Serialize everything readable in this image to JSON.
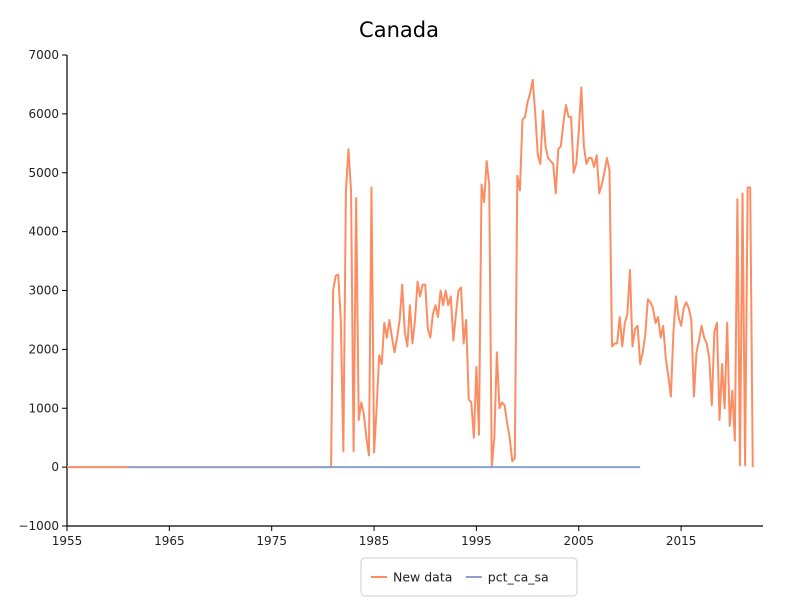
{
  "chart_data": {
    "type": "line",
    "title": "Canada",
    "xlabel": "",
    "ylabel": "",
    "xlim": [
      1955,
      2023
    ],
    "ylim": [
      -1000,
      7000
    ],
    "x_ticks": [
      1955,
      1965,
      1975,
      1985,
      1995,
      2005,
      2015
    ],
    "y_ticks": [
      -1000,
      0,
      1000,
      2000,
      3000,
      4000,
      5000,
      6000,
      7000
    ],
    "grid": false,
    "legend_position": "bottom",
    "series": [
      {
        "name": "New data",
        "color": "#fc8d62",
        "points": [
          [
            1955,
            0
          ],
          [
            1957,
            0
          ],
          [
            1959,
            0
          ],
          [
            1961,
            0
          ],
          [
            1963,
            0
          ],
          [
            1965,
            0
          ],
          [
            1967,
            0
          ],
          [
            1969,
            0
          ],
          [
            1971,
            0
          ],
          [
            1973,
            0
          ],
          [
            1975,
            0
          ],
          [
            1977,
            0
          ],
          [
            1979,
            0
          ],
          [
            1980.8,
            0
          ],
          [
            1981.0,
            3000
          ],
          [
            1981.25,
            3250
          ],
          [
            1981.5,
            3270
          ],
          [
            1981.75,
            2500
          ],
          [
            1982.0,
            270
          ],
          [
            1982.25,
            4700
          ],
          [
            1982.5,
            5400
          ],
          [
            1982.75,
            4700
          ],
          [
            1983.0,
            270
          ],
          [
            1983.25,
            4570
          ],
          [
            1983.5,
            800
          ],
          [
            1983.75,
            1100
          ],
          [
            1984.0,
            900
          ],
          [
            1984.25,
            500
          ],
          [
            1984.5,
            200
          ],
          [
            1984.75,
            4750
          ],
          [
            1985.0,
            250
          ],
          [
            1985.25,
            1000
          ],
          [
            1985.5,
            1900
          ],
          [
            1985.75,
            1750
          ],
          [
            1986.0,
            2450
          ],
          [
            1986.25,
            2200
          ],
          [
            1986.5,
            2500
          ],
          [
            1986.75,
            2200
          ],
          [
            1987.0,
            1950
          ],
          [
            1987.25,
            2200
          ],
          [
            1987.5,
            2500
          ],
          [
            1987.75,
            3100
          ],
          [
            1988.0,
            2300
          ],
          [
            1988.25,
            2050
          ],
          [
            1988.5,
            2750
          ],
          [
            1988.75,
            2100
          ],
          [
            1989.0,
            2500
          ],
          [
            1989.25,
            3150
          ],
          [
            1989.5,
            2900
          ],
          [
            1989.75,
            3100
          ],
          [
            1990.0,
            3100
          ],
          [
            1990.25,
            2350
          ],
          [
            1990.5,
            2200
          ],
          [
            1990.75,
            2600
          ],
          [
            1991.0,
            2750
          ],
          [
            1991.25,
            2550
          ],
          [
            1991.5,
            3000
          ],
          [
            1991.75,
            2750
          ],
          [
            1992.0,
            3000
          ],
          [
            1992.25,
            2750
          ],
          [
            1992.5,
            2900
          ],
          [
            1992.75,
            2150
          ],
          [
            1993.0,
            2600
          ],
          [
            1993.25,
            3000
          ],
          [
            1993.5,
            3050
          ],
          [
            1993.75,
            2100
          ],
          [
            1994.0,
            2500
          ],
          [
            1994.25,
            1150
          ],
          [
            1994.5,
            1100
          ],
          [
            1994.75,
            500
          ],
          [
            1995.0,
            1700
          ],
          [
            1995.25,
            550
          ],
          [
            1995.5,
            4800
          ],
          [
            1995.75,
            4500
          ],
          [
            1996.0,
            5200
          ],
          [
            1996.25,
            4800
          ],
          [
            1996.5,
            0
          ],
          [
            1996.75,
            500
          ],
          [
            1997.0,
            1950
          ],
          [
            1997.25,
            1000
          ],
          [
            1997.5,
            1100
          ],
          [
            1997.75,
            1050
          ],
          [
            1998.0,
            750
          ],
          [
            1998.25,
            500
          ],
          [
            1998.5,
            100
          ],
          [
            1998.75,
            150
          ],
          [
            1999.0,
            4950
          ],
          [
            1999.25,
            4700
          ],
          [
            1999.5,
            5900
          ],
          [
            1999.75,
            5950
          ],
          [
            2000.0,
            6200
          ],
          [
            2000.25,
            6350
          ],
          [
            2000.5,
            6580
          ],
          [
            2000.75,
            6000
          ],
          [
            2001.0,
            5300
          ],
          [
            2001.25,
            5150
          ],
          [
            2001.5,
            6050
          ],
          [
            2001.75,
            5450
          ],
          [
            2002.0,
            5250
          ],
          [
            2002.25,
            5200
          ],
          [
            2002.5,
            5150
          ],
          [
            2002.75,
            4650
          ],
          [
            2003.0,
            5400
          ],
          [
            2003.25,
            5450
          ],
          [
            2003.5,
            5850
          ],
          [
            2003.75,
            6150
          ],
          [
            2004.0,
            5950
          ],
          [
            2004.25,
            5950
          ],
          [
            2004.5,
            5000
          ],
          [
            2004.75,
            5150
          ],
          [
            2005.0,
            5700
          ],
          [
            2005.25,
            6450
          ],
          [
            2005.5,
            5450
          ],
          [
            2005.75,
            5150
          ],
          [
            2006.0,
            5250
          ],
          [
            2006.25,
            5250
          ],
          [
            2006.5,
            5100
          ],
          [
            2006.75,
            5300
          ],
          [
            2007.0,
            4650
          ],
          [
            2007.25,
            4800
          ],
          [
            2007.5,
            5000
          ],
          [
            2007.75,
            5250
          ],
          [
            2008.0,
            5050
          ],
          [
            2008.25,
            2050
          ],
          [
            2008.5,
            2100
          ],
          [
            2008.75,
            2100
          ],
          [
            2009.0,
            2550
          ],
          [
            2009.25,
            2050
          ],
          [
            2009.5,
            2450
          ],
          [
            2009.75,
            2600
          ],
          [
            2010.0,
            3350
          ],
          [
            2010.25,
            2050
          ],
          [
            2010.5,
            2350
          ],
          [
            2010.75,
            2400
          ],
          [
            2011.0,
            1750
          ],
          [
            2011.25,
            1950
          ],
          [
            2011.5,
            2250
          ],
          [
            2011.75,
            2850
          ],
          [
            2012.0,
            2800
          ],
          [
            2012.25,
            2700
          ],
          [
            2012.5,
            2450
          ],
          [
            2012.75,
            2550
          ],
          [
            2013.0,
            2200
          ],
          [
            2013.25,
            2400
          ],
          [
            2013.5,
            1850
          ],
          [
            2013.75,
            1550
          ],
          [
            2014.0,
            1200
          ],
          [
            2014.25,
            2300
          ],
          [
            2014.5,
            2900
          ],
          [
            2014.75,
            2550
          ],
          [
            2015.0,
            2400
          ],
          [
            2015.25,
            2700
          ],
          [
            2015.5,
            2800
          ],
          [
            2015.75,
            2700
          ],
          [
            2016.0,
            2500
          ],
          [
            2016.25,
            1200
          ],
          [
            2016.5,
            1950
          ],
          [
            2016.75,
            2150
          ],
          [
            2017.0,
            2400
          ],
          [
            2017.25,
            2200
          ],
          [
            2017.5,
            2100
          ],
          [
            2017.75,
            1850
          ],
          [
            2018.0,
            1050
          ],
          [
            2018.25,
            2300
          ],
          [
            2018.5,
            2450
          ],
          [
            2018.75,
            800
          ],
          [
            2019.0,
            1750
          ],
          [
            2019.25,
            1000
          ],
          [
            2019.5,
            2450
          ],
          [
            2019.75,
            700
          ],
          [
            2020.0,
            1300
          ],
          [
            2020.25,
            450
          ],
          [
            2020.5,
            4550
          ],
          [
            2020.75,
            30
          ],
          [
            2021.0,
            4650
          ],
          [
            2021.25,
            30
          ],
          [
            2021.5,
            4750
          ],
          [
            2021.75,
            4750
          ],
          [
            2022.0,
            0
          ]
        ]
      },
      {
        "name": "pct_ca_sa",
        "color": "#8da0cb",
        "points": [
          [
            1961,
            0
          ],
          [
            1965,
            0
          ],
          [
            1970,
            0
          ],
          [
            1975,
            0
          ],
          [
            1980,
            0
          ],
          [
            1985,
            0
          ],
          [
            1990,
            0
          ],
          [
            1995,
            0
          ],
          [
            2000,
            0
          ],
          [
            2005,
            0
          ],
          [
            2011,
            0
          ]
        ]
      }
    ]
  }
}
